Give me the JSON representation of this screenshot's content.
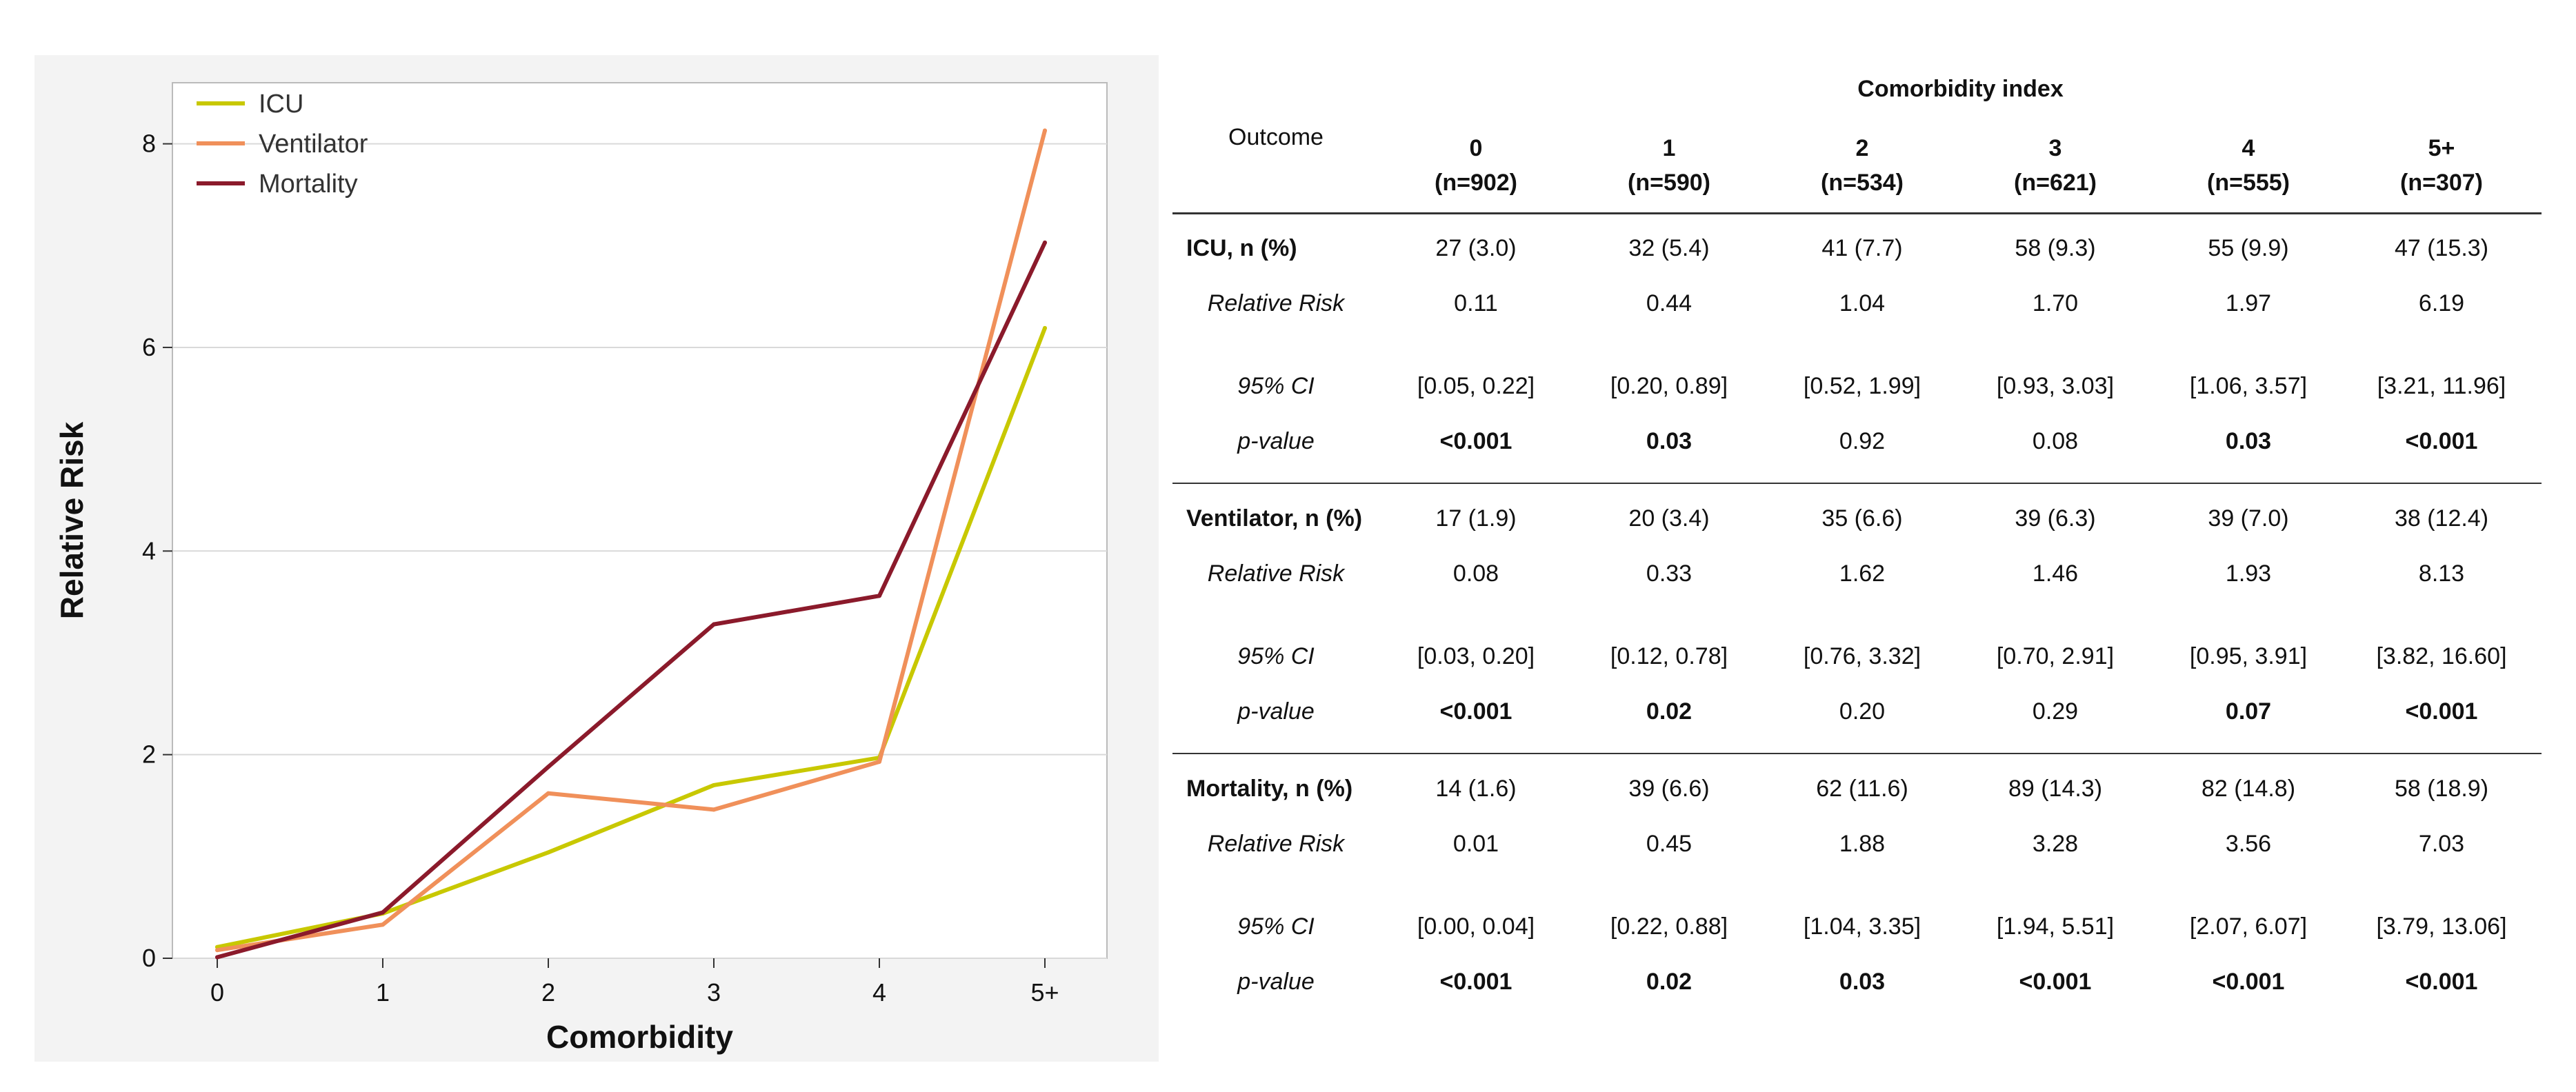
{
  "chart_data": {
    "type": "line",
    "xlabel": "Comorbidity",
    "ylabel": "Relative Risk",
    "categories": [
      "0",
      "1",
      "2",
      "3",
      "4",
      "5+"
    ],
    "ylim": [
      0,
      8.6
    ],
    "yticks": [
      0,
      2,
      4,
      6,
      8
    ],
    "grid": "horizontal",
    "legend_position": "top-left",
    "series": [
      {
        "name": "ICU",
        "color": "#c8c800",
        "values": [
          0.11,
          0.44,
          1.04,
          1.7,
          1.97,
          6.19
        ]
      },
      {
        "name": "Ventilator",
        "color": "#f0905a",
        "values": [
          0.08,
          0.33,
          1.62,
          1.46,
          1.93,
          8.13
        ]
      },
      {
        "name": "Mortality",
        "color": "#8b1a2b",
        "values": [
          0.01,
          0.45,
          1.88,
          3.28,
          3.56,
          7.03
        ]
      }
    ]
  },
  "table": {
    "group_title": "Comorbidity index",
    "outcome_header": "Outcome",
    "columns": [
      {
        "index": "0",
        "n": "(n=902)"
      },
      {
        "index": "1",
        "n": "(n=590)"
      },
      {
        "index": "2",
        "n": "(n=534)"
      },
      {
        "index": "3",
        "n": "(n=621)"
      },
      {
        "index": "4",
        "n": "(n=555)"
      },
      {
        "index": "5+",
        "n": "(n=307)"
      }
    ],
    "groups": [
      {
        "label": "ICU, n (%)",
        "counts": [
          "27 (3.0)",
          "32 (5.4)",
          "41 (7.7)",
          "58 (9.3)",
          "55 (9.9)",
          "47 (15.3)"
        ],
        "rr_label": "Relative Risk",
        "rr": [
          "0.11",
          "0.44",
          "1.04",
          "1.70",
          "1.97",
          "6.19"
        ],
        "ci_label": "95% CI",
        "ci": [
          "[0.05, 0.22]",
          "[0.20, 0.89]",
          "[0.52, 1.99]",
          "[0.93, 3.03]",
          "[1.06, 3.57]",
          "[3.21, 11.96]"
        ],
        "p_label": "p-value",
        "p": [
          "<0.001",
          "0.03",
          "0.92",
          "0.08",
          "0.03",
          "<0.001"
        ],
        "p_bold": [
          true,
          true,
          false,
          false,
          true,
          true
        ]
      },
      {
        "label": "Ventilator, n (%)",
        "counts": [
          "17 (1.9)",
          "20 (3.4)",
          "35 (6.6)",
          "39 (6.3)",
          "39 (7.0)",
          "38 (12.4)"
        ],
        "rr_label": "Relative Risk",
        "rr": [
          "0.08",
          "0.33",
          "1.62",
          "1.46",
          "1.93",
          "8.13"
        ],
        "ci_label": "95% CI",
        "ci": [
          "[0.03, 0.20]",
          "[0.12, 0.78]",
          "[0.76, 3.32]",
          "[0.70, 2.91]",
          "[0.95, 3.91]",
          "[3.82, 16.60]"
        ],
        "p_label": "p-value",
        "p": [
          "<0.001",
          "0.02",
          "0.20",
          "0.29",
          "0.07",
          "<0.001"
        ],
        "p_bold": [
          true,
          true,
          false,
          false,
          true,
          true
        ]
      },
      {
        "label": "Mortality, n (%)",
        "counts": [
          "14 (1.6)",
          "39 (6.6)",
          "62 (11.6)",
          "89 (14.3)",
          "82 (14.8)",
          "58 (18.9)"
        ],
        "rr_label": "Relative Risk",
        "rr": [
          "0.01",
          "0.45",
          "1.88",
          "3.28",
          "3.56",
          "7.03"
        ],
        "ci_label": "95% CI",
        "ci": [
          "[0.00, 0.04]",
          "[0.22, 0.88]",
          "[1.04, 3.35]",
          "[1.94, 5.51]",
          "[2.07, 6.07]",
          "[3.79, 13.06]"
        ],
        "p_label": "p-value",
        "p": [
          "<0.001",
          "0.02",
          "0.03",
          "<0.001",
          "<0.001",
          "<0.001"
        ],
        "p_bold": [
          true,
          true,
          true,
          true,
          true,
          true
        ]
      }
    ]
  }
}
